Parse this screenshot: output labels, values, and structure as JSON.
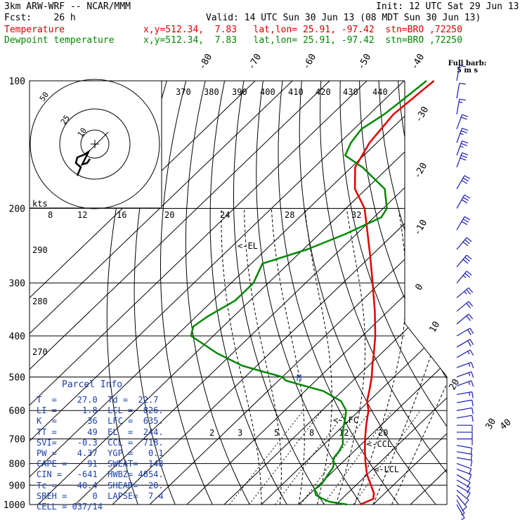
{
  "header": {
    "model": "3km ARW-WRF -- NCAR/MMM",
    "init": "Init: 12 UTC Sat 29 Jun 13",
    "fcst": "Fcst:    26 h",
    "valid": "Valid: 14 UTC Sun 30 Jun 13 (08 MDT Sun 30 Jun 13)",
    "temp_label": "Temperature",
    "temp_loc": "x,y=512.34,  7.83   lat,lon= 25.91, -97.42  stn=BRO ,72250",
    "dew_label": "Dewpoint temperature",
    "dew_loc": "x,y=512.34,  7.83   lat,lon= 25.91, -97.42  stn=BRO ,72250"
  },
  "barb_title": [
    "Full barb:",
    "5 m s"
  ],
  "hodograph": {
    "units": "kts",
    "ring_labels": [
      "50",
      "25",
      "10"
    ]
  },
  "annotations": {
    "el": "<-EL",
    "lfc": "<-LFC",
    "ccl": "<-CCL",
    "lcl": "<-LCL",
    "m": "M"
  },
  "parcel": {
    "title": "Parcel Info",
    "rows": [
      "T  =    27.0  Td =  22.7",
      "LI =    -1.8  LCL =  826.",
      "K  =      36  LFC =  635.",
      "TT =      49  EL  =  244.",
      "SVI=    -0.3  CCL =  718.",
      "PW =    4.37  YGP =   0.1",
      "CAPE =    91  SWEAT=  148",
      "CIN =   -641  HWBZ= 4854.",
      "Tc =    40.4  SHEAR=  20.",
      "SREH =     0  LAPSE=  7.4",
      "CELL = 037/14"
    ]
  },
  "colors": {
    "temperature": "#e00000",
    "dewpoint": "#008800",
    "text_blue": "#1a3fb0",
    "grid": "#000000",
    "barb": "#1a1ab0"
  },
  "chart_data": {
    "type": "line",
    "chart_kind": "skew-T log-P sounding",
    "y_axis": {
      "scale": "log",
      "label": "",
      "ticks": [
        100,
        200,
        300,
        400,
        500,
        600,
        700,
        800,
        900,
        1000
      ],
      "range": [
        1000,
        100
      ]
    },
    "isotherm_labels": [
      "-80",
      "-70",
      "-60",
      "-50",
      "-40",
      "-30",
      "-20",
      "-10",
      "0",
      "10",
      "20",
      "30",
      "40"
    ],
    "theta_labels": [
      "370",
      "380",
      "390",
      "400",
      "410",
      "420",
      "430",
      "440",
      "290",
      "280",
      "270"
    ],
    "mixing_ratio_labels": [
      "8",
      "12",
      "16",
      "20",
      "24",
      "28",
      "32"
    ],
    "lower_mixing_labels": [
      "2",
      "3",
      "5",
      "8",
      "12",
      "20"
    ],
    "series": [
      {
        "name": "Temperature",
        "pressure": [
          1000,
          970,
          940,
          900,
          850,
          800,
          750,
          700,
          650,
          600,
          570,
          530,
          500,
          470,
          440,
          400,
          350,
          300,
          260,
          230,
          200,
          180,
          160,
          140,
          120,
          100
        ],
        "temperature_c": [
          26.5,
          28.5,
          27.0,
          24.0,
          20.0,
          16.5,
          13.0,
          9.5,
          6.0,
          2.5,
          -0.5,
          -3.5,
          -6.0,
          -9.0,
          -12.0,
          -16.5,
          -23.5,
          -32.0,
          -40.0,
          -47.0,
          -55.0,
          -63.0,
          -69.0,
          -72.0,
          -73.5,
          -72.0
        ]
      },
      {
        "name": "Dewpoint temperature",
        "pressure": [
          1000,
          985,
          970,
          950,
          920,
          900,
          870,
          850,
          820,
          800,
          780,
          750,
          720,
          700,
          680,
          650,
          620,
          600,
          570,
          540,
          510,
          500,
          485,
          470,
          440,
          400,
          380,
          360,
          330,
          300,
          270,
          250,
          230,
          210,
          200,
          180,
          160,
          150,
          140,
          130,
          120,
          110,
          100
        ],
        "dewpoint_c": [
          23.0,
          17.5,
          15.0,
          12.0,
          10.0,
          10.5,
          10.0,
          9.5,
          9.0,
          8.0,
          6.5,
          6.0,
          5.0,
          3.5,
          2.0,
          0.0,
          -2.0,
          -3.5,
          -7.5,
          -15.0,
          -28.0,
          -30.0,
          -37.0,
          -44.0,
          -54.0,
          -66.0,
          -68.0,
          -67.0,
          -64.0,
          -64.0,
          -67.0,
          -59.0,
          -53.0,
          -48.0,
          -49.0,
          -55.0,
          -67.0,
          -75.0,
          -77.0,
          -78.0,
          -76.0,
          -75.0,
          -74.0
        ]
      }
    ],
    "wind_barbs": {
      "pressure": [
        1000,
        975,
        950,
        925,
        900,
        875,
        850,
        825,
        800,
        775,
        750,
        725,
        700,
        675,
        650,
        625,
        600,
        575,
        550,
        525,
        500,
        475,
        450,
        425,
        400,
        375,
        350,
        325,
        300,
        275,
        250,
        225,
        200,
        180,
        160,
        150,
        140,
        130,
        120,
        110,
        100
      ],
      "speed_ms": [
        3,
        4,
        5,
        5,
        5,
        5,
        5,
        5,
        5,
        5,
        5,
        5,
        6,
        6,
        6,
        7,
        7,
        7,
        8,
        8,
        8,
        9,
        9,
        10,
        10,
        11,
        12,
        13,
        14,
        15,
        16,
        16,
        17,
        17,
        15,
        14,
        13,
        11,
        9,
        7,
        5
      ],
      "direction_deg": [
        150,
        150,
        140,
        130,
        120,
        120,
        120,
        110,
        110,
        100,
        100,
        100,
        90,
        90,
        90,
        80,
        80,
        80,
        80,
        70,
        70,
        70,
        60,
        60,
        60,
        50,
        50,
        50,
        40,
        40,
        40,
        30,
        30,
        30,
        20,
        20,
        20,
        20,
        10,
        10,
        10
      ]
    },
    "hodograph_ring_speeds_kts": [
      10,
      25,
      50
    ]
  }
}
